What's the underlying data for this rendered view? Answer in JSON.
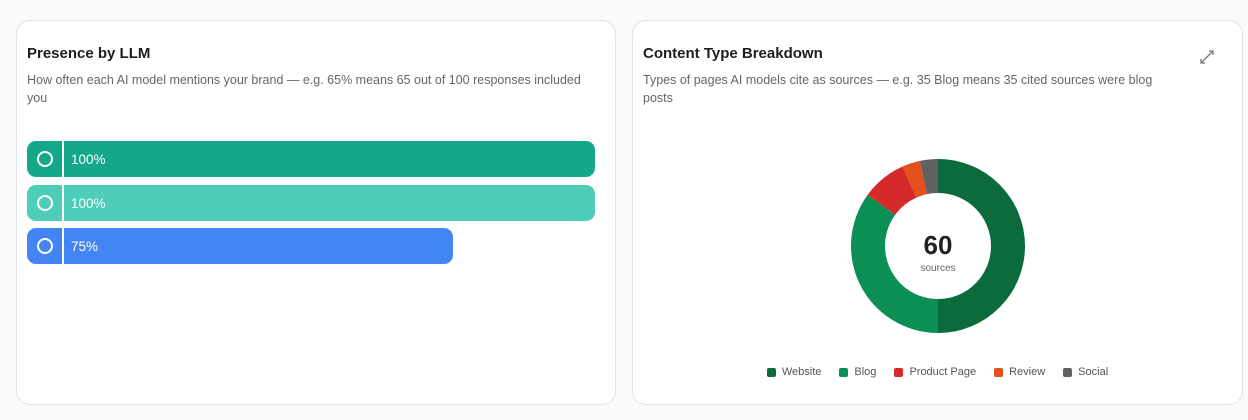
{
  "chart_data": [
    {
      "type": "bar",
      "orientation": "horizontal",
      "title": "Presence by LLM",
      "subtitle": "How often each AI model mentions your brand — e.g. 65% means 65 out of 100 responses included you",
      "values": [
        100,
        100,
        75
      ],
      "value_labels": [
        "100%",
        "100%",
        "75%"
      ],
      "colors": [
        "#14a88b",
        "#4ecdb9",
        "#4385f4"
      ],
      "xlim": [
        0,
        100
      ]
    },
    {
      "type": "pie",
      "donut": true,
      "title": "Content Type Breakdown",
      "subtitle": "Types of pages AI models cite as sources — e.g. 35 Blog means 35 cited sources were blog posts",
      "categories": [
        "Website",
        "Blog",
        "Product Page",
        "Review",
        "Social"
      ],
      "values": [
        30,
        21,
        5,
        2,
        2
      ],
      "colors": [
        "#0b6b3a",
        "#0c8f55",
        "#d42a2a",
        "#e3501c",
        "#616161"
      ],
      "center_value": 60,
      "center_label": "sources"
    }
  ]
}
